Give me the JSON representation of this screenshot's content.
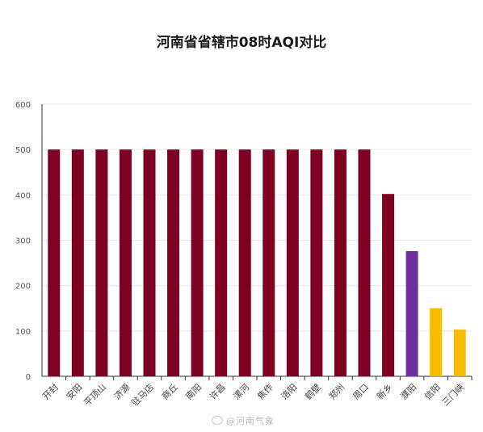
{
  "chart_data": {
    "type": "bar",
    "title": "河南省省辖市08时AQI对比",
    "xlabel": "",
    "ylabel": "",
    "ylim": [
      0,
      600
    ],
    "yticks": [
      0,
      100,
      200,
      300,
      400,
      500,
      600
    ],
    "grid": true,
    "categories": [
      "开封",
      "安阳",
      "平顶山",
      "济源",
      "驻马店",
      "商丘",
      "南阳",
      "许昌",
      "漯河",
      "焦作",
      "洛阳",
      "鹤壁",
      "郑州",
      "周口",
      "新乡",
      "濮阳",
      "信阳",
      "三门峡"
    ],
    "values": [
      500,
      500,
      500,
      500,
      500,
      500,
      500,
      500,
      500,
      500,
      500,
      500,
      500,
      500,
      402,
      276,
      150,
      103
    ],
    "bar_colors": [
      "#7e0023",
      "#7e0023",
      "#7e0023",
      "#7e0023",
      "#7e0023",
      "#7e0023",
      "#7e0023",
      "#7e0023",
      "#7e0023",
      "#7e0023",
      "#7e0023",
      "#7e0023",
      "#7e0023",
      "#7e0023",
      "#7e0023",
      "#7030a0",
      "#f7bb00",
      "#f7bb00"
    ]
  },
  "watermark": "@河南气象",
  "colors": {
    "axis": "#333333",
    "grid": "#e6e6e6"
  }
}
